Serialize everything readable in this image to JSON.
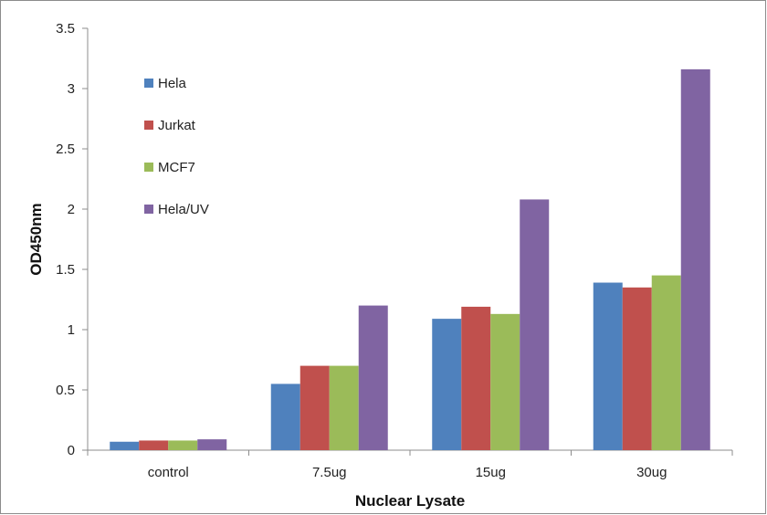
{
  "chart_data": {
    "type": "bar",
    "title": "",
    "xlabel": "Nuclear Lysate",
    "ylabel": "OD450nm",
    "ylim": [
      0,
      3.5
    ],
    "yticks": [
      "0",
      "0.5",
      "1",
      "1.5",
      "2",
      "2.5",
      "3",
      "3.5"
    ],
    "grid": false,
    "legend_position": "top-left",
    "categories": [
      "control",
      "7.5ug",
      "15ug",
      "30ug"
    ],
    "series": [
      {
        "name": "Hela",
        "color": "#4f81bd",
        "values": [
          0.07,
          0.55,
          1.09,
          1.39
        ]
      },
      {
        "name": "Jurkat",
        "color": "#c0504d",
        "values": [
          0.08,
          0.7,
          1.19,
          1.35
        ]
      },
      {
        "name": "MCF7",
        "color": "#9bbb59",
        "values": [
          0.08,
          0.7,
          1.13,
          1.45
        ]
      },
      {
        "name": "Hela/UV",
        "color": "#8064a2",
        "values": [
          0.09,
          1.2,
          2.08,
          3.16
        ]
      }
    ]
  }
}
